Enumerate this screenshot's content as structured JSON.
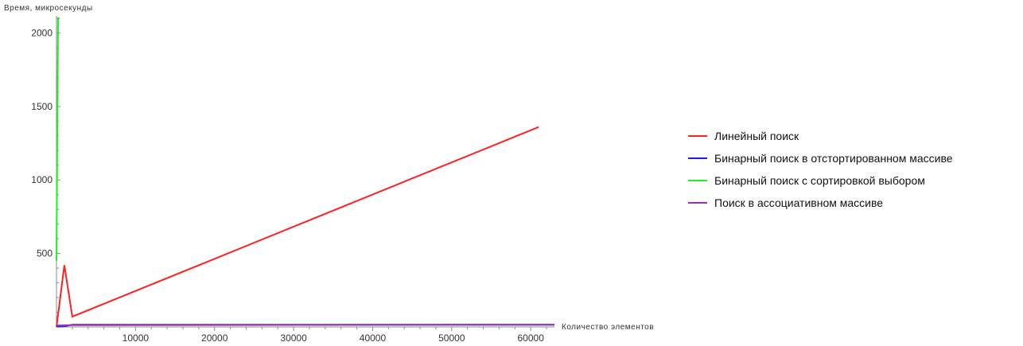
{
  "chart_data": {
    "type": "line",
    "title": "",
    "xlabel": "Количество элементов",
    "ylabel": "Время, микросекунды",
    "xlim": [
      0,
      63000
    ],
    "ylim": [
      0,
      2100
    ],
    "x_ticks": [
      10000,
      20000,
      30000,
      40000,
      50000,
      60000
    ],
    "y_ticks": [
      500,
      1000,
      1500,
      2000
    ],
    "grid": false,
    "legend_position": "right",
    "series": [
      {
        "name": "Линейный поиск",
        "color": "#ff2020",
        "x": [
          0,
          1000,
          2000,
          61000
        ],
        "y": [
          0,
          420,
          70,
          1360
        ]
      },
      {
        "name": "Бинарный поиск в отстортированном массиве",
        "color": "#1a1aff",
        "x": [
          0,
          1000,
          2000,
          10000,
          63000
        ],
        "y": [
          2,
          5,
          15,
          15,
          15
        ]
      },
      {
        "name": "Бинарный поиск с сортировкой выбором",
        "color": "#22ee22",
        "x": [
          0,
          200,
          400
        ],
        "y": [
          450,
          2100,
          2100
        ]
      },
      {
        "name": "Поиск в ассоциативном массиве",
        "color": "#9b30b0",
        "x": [
          0,
          2000,
          63000
        ],
        "y": [
          10,
          12,
          15
        ]
      }
    ]
  }
}
